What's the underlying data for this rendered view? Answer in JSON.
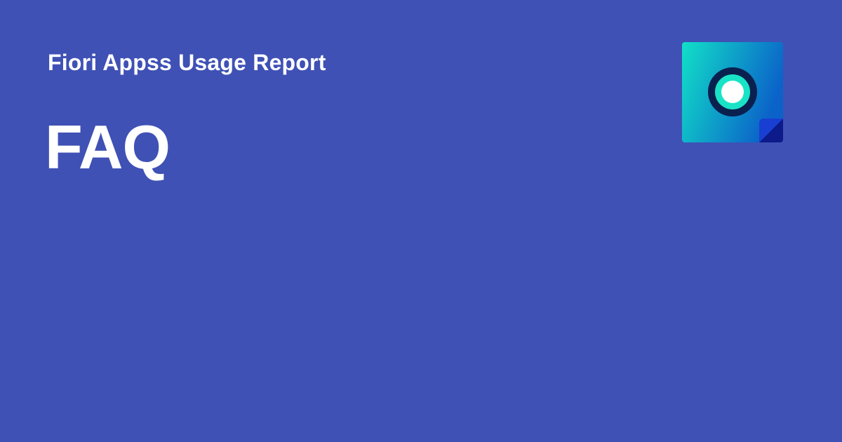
{
  "header": {
    "site_title": "Fiori Appss Usage Report"
  },
  "main": {
    "heading": "FAQ"
  },
  "logo": {
    "icon": "sticky-note-eye-logo-icon"
  },
  "colors": {
    "background": "#3f51b5",
    "text": "#ffffff",
    "logo_gradient_start": "#11e0c8",
    "logo_gradient_end": "#0b63c9",
    "logo_corner_dark": "#0d1a8a",
    "logo_ring_dark": "#0a2150",
    "logo_ring_accent": "#19e3c6",
    "logo_center": "#ffffff"
  }
}
